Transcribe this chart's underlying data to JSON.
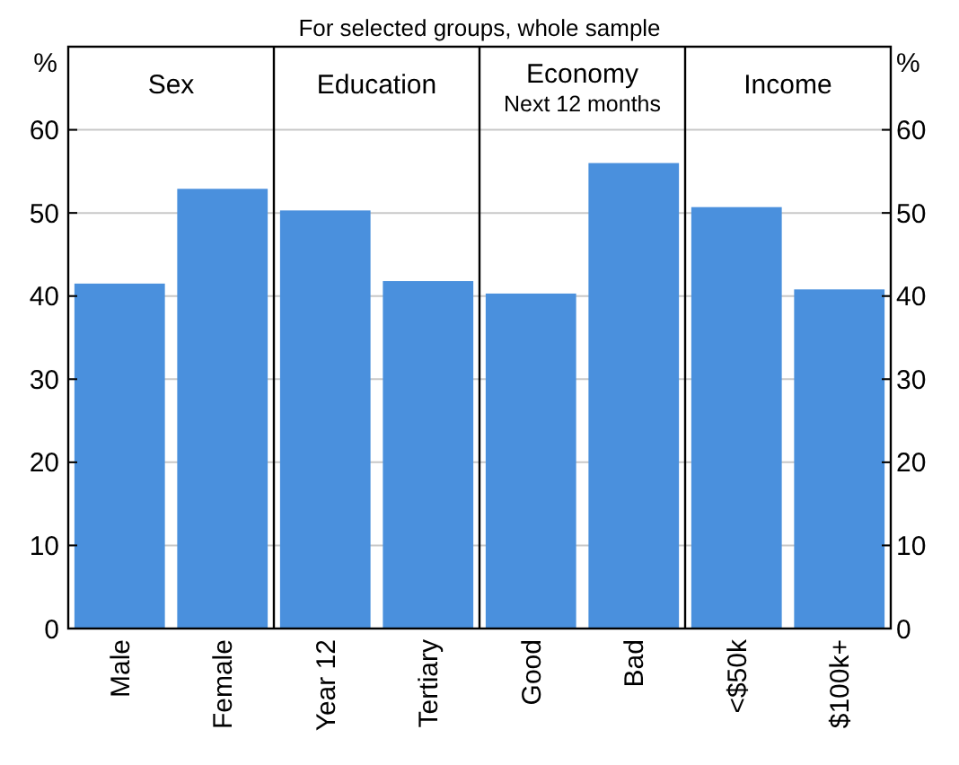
{
  "chart_data": {
    "type": "bar",
    "subtitle": "For selected groups, whole sample",
    "categories": [
      "Male",
      "Female",
      "Year 12",
      "Tertiary",
      "Good",
      "Bad",
      "<$50k",
      "$100k+"
    ],
    "values": [
      41.5,
      52.9,
      50.3,
      41.8,
      40.3,
      56.0,
      50.7,
      40.8
    ],
    "color": "#4a90dd",
    "ylabel": "%",
    "y2label": "%",
    "ylim": [
      0,
      70
    ],
    "yticks": [
      0,
      10,
      20,
      30,
      40,
      50,
      60
    ],
    "y2lim": [
      0,
      70
    ],
    "y2ticks": [
      0,
      10,
      20,
      30,
      40,
      50,
      60
    ],
    "grid": "y",
    "annotations": [
      "Sex",
      "Education",
      "Economy\nNext 12 months",
      "Income"
    ]
  }
}
